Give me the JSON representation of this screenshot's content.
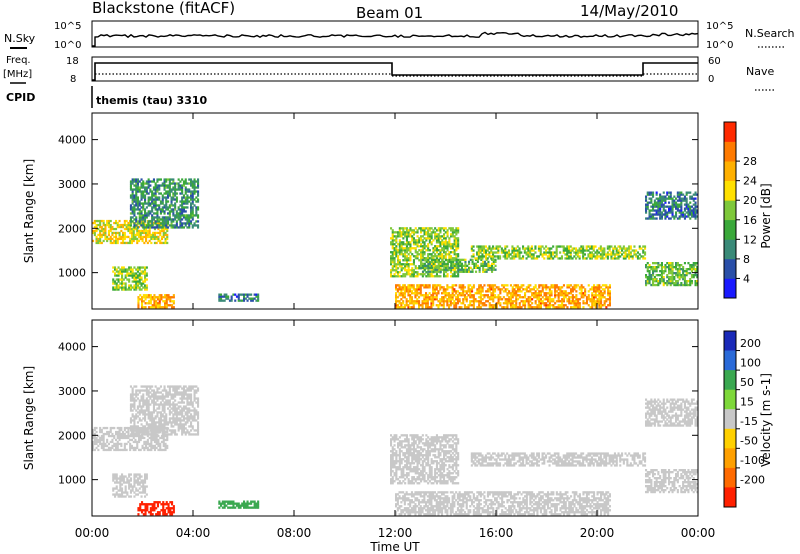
{
  "header": {
    "station": "Blackstone (fitACF)",
    "beam": "Beam 01",
    "date": "14/May/2010"
  },
  "panels": {
    "nsky_label": "N.Sky",
    "nsearch_label": "N.Search",
    "freq_label_1": "Freq.",
    "freq_label_2": "[MHz]",
    "nave_label": "Nave",
    "cpid_label": "CPID",
    "cpid_value": "themis (tau) 3310",
    "nsky_ticks": [
      "10^5",
      "10^0"
    ],
    "nsearch_ticks": [
      "10^5",
      "10^0"
    ],
    "freq_ticks": [
      "18",
      "8"
    ],
    "nave_ticks": [
      "60",
      "0"
    ]
  },
  "colors": {
    "power_scale": [
      "#1a1aff",
      "#2a4fa8",
      "#3a8a78",
      "#3aa83a",
      "#7ec83a",
      "#ffe000",
      "#ffb000",
      "#ff7a00",
      "#ff2a00"
    ],
    "velocity_scale": [
      "#1a2ab8",
      "#2a6ad8",
      "#3aa850",
      "#7ed83a",
      "#c8c8c8",
      "#ffd000",
      "#ffa000",
      "#ff6a00",
      "#ff2000"
    ]
  },
  "chart_data": [
    {
      "type": "heatmap",
      "title": "Power",
      "xlabel": "Time UT",
      "ylabel": "Slant Range [km]",
      "x_ticks": [
        "00:00",
        "04:00",
        "08:00",
        "12:00",
        "16:00",
        "20:00",
        "00:00"
      ],
      "y_ticks": [
        "1000",
        "2000",
        "3000",
        "4000"
      ],
      "ylim": [
        180,
        4600
      ],
      "colorbar_label": "Power [dB]",
      "colorbar_ticks": [
        "4",
        "8",
        "12",
        "16",
        "20",
        "24",
        "28"
      ],
      "bands": [
        {
          "t0": 0.0,
          "t1": 3.0,
          "r0": 1650,
          "r1": 2150,
          "level": 20
        },
        {
          "t0": 1.5,
          "t1": 4.2,
          "r0": 2000,
          "r1": 3100,
          "level": 10
        },
        {
          "t0": 0.8,
          "t1": 2.2,
          "r0": 600,
          "r1": 1100,
          "level": 16
        },
        {
          "t0": 1.8,
          "t1": 3.2,
          "r0": 200,
          "r1": 500,
          "level": 24
        },
        {
          "t0": 5.0,
          "t1": 6.6,
          "r0": 350,
          "r1": 500,
          "level": 8
        },
        {
          "t0": 11.8,
          "t1": 14.5,
          "r0": 900,
          "r1": 2000,
          "level": 16
        },
        {
          "t0": 12.0,
          "t1": 20.5,
          "r0": 200,
          "r1": 700,
          "level": 24
        },
        {
          "t0": 13.0,
          "t1": 16.0,
          "r0": 1000,
          "r1": 1300,
          "level": 14
        },
        {
          "t0": 15.0,
          "t1": 21.9,
          "r0": 1300,
          "r1": 1600,
          "level": 16
        },
        {
          "t0": 21.9,
          "t1": 24.0,
          "r0": 700,
          "r1": 1200,
          "level": 14
        },
        {
          "t0": 21.9,
          "t1": 24.0,
          "r0": 2200,
          "r1": 2800,
          "level": 8
        }
      ]
    },
    {
      "type": "heatmap",
      "title": "Velocity",
      "xlabel": "Time UT",
      "ylabel": "Slant Range [km]",
      "x_ticks": [
        "00:00",
        "04:00",
        "08:00",
        "12:00",
        "16:00",
        "20:00",
        "00:00"
      ],
      "y_ticks": [
        "1000",
        "2000",
        "3000",
        "4000"
      ],
      "ylim": [
        180,
        4600
      ],
      "colorbar_label": "Velocity [m s-1]",
      "colorbar_ticks": [
        "200",
        "100",
        "50",
        "15",
        "-15",
        "-50",
        "-100",
        "-200"
      ],
      "bands": [
        {
          "t0": 0.0,
          "t1": 3.0,
          "r0": 1650,
          "r1": 2150,
          "level": 0
        },
        {
          "t0": 1.5,
          "t1": 4.2,
          "r0": 2000,
          "r1": 3100,
          "level": 0
        },
        {
          "t0": 0.8,
          "t1": 2.2,
          "r0": 600,
          "r1": 1100,
          "level": 0
        },
        {
          "t0": 1.8,
          "t1": 3.2,
          "r0": 200,
          "r1": 500,
          "level": -180
        },
        {
          "t0": 5.0,
          "t1": 6.6,
          "r0": 350,
          "r1": 500,
          "level": 40
        },
        {
          "t0": 11.8,
          "t1": 14.5,
          "r0": 900,
          "r1": 2000,
          "level": 0
        },
        {
          "t0": 12.0,
          "t1": 20.5,
          "r0": 200,
          "r1": 700,
          "level": 0
        },
        {
          "t0": 15.0,
          "t1": 21.9,
          "r0": 1300,
          "r1": 1600,
          "level": 0
        },
        {
          "t0": 21.9,
          "t1": 24.0,
          "r0": 700,
          "r1": 1200,
          "level": 0
        },
        {
          "t0": 21.9,
          "t1": 24.0,
          "r0": 2200,
          "r1": 2800,
          "level": 0
        }
      ]
    }
  ]
}
